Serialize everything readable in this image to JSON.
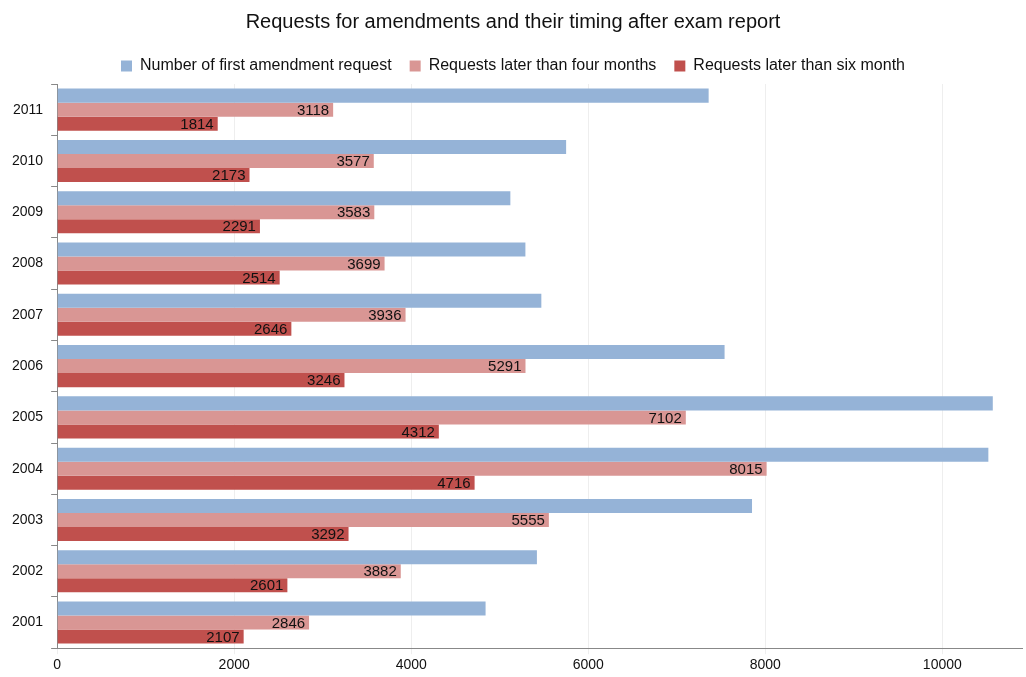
{
  "chart_data": {
    "type": "bar",
    "orientation": "horizontal",
    "title": "Requests for amendments and their timing after exam report",
    "categories": [
      "2011",
      "2010",
      "2009",
      "2008",
      "2007",
      "2006",
      "2005",
      "2004",
      "2003",
      "2002",
      "2001"
    ],
    "series": [
      {
        "name": "Number of first amendment request",
        "color": "#95b3d7",
        "values": [
          7360,
          5750,
          5120,
          5290,
          5470,
          7540,
          10570,
          10520,
          7850,
          5420,
          4840
        ]
      },
      {
        "name": "Requests later than four months",
        "color": "#d99694",
        "values": [
          3118,
          3577,
          3583,
          3699,
          3936,
          5291,
          7102,
          8015,
          5555,
          3882,
          2846
        ],
        "value_labels": [
          "3118",
          "3577",
          "3583",
          "3699",
          "3936",
          "5291",
          "7102",
          "8015",
          "5555",
          "3882",
          "2846"
        ]
      },
      {
        "name": "Requests later than six month",
        "color": "#c0504d",
        "values": [
          1814,
          2173,
          2291,
          2514,
          2646,
          3246,
          4312,
          4716,
          3292,
          2601,
          2107
        ],
        "value_labels": [
          "1814",
          "2173",
          "2291",
          "2514",
          "2646",
          "3246",
          "4312",
          "4716",
          "3292",
          "2601",
          "2107"
        ]
      }
    ],
    "xlim": [
      0,
      10900
    ],
    "xticks": [
      0,
      2000,
      4000,
      6000,
      8000,
      10000
    ],
    "grid": "x",
    "legend": "top"
  }
}
